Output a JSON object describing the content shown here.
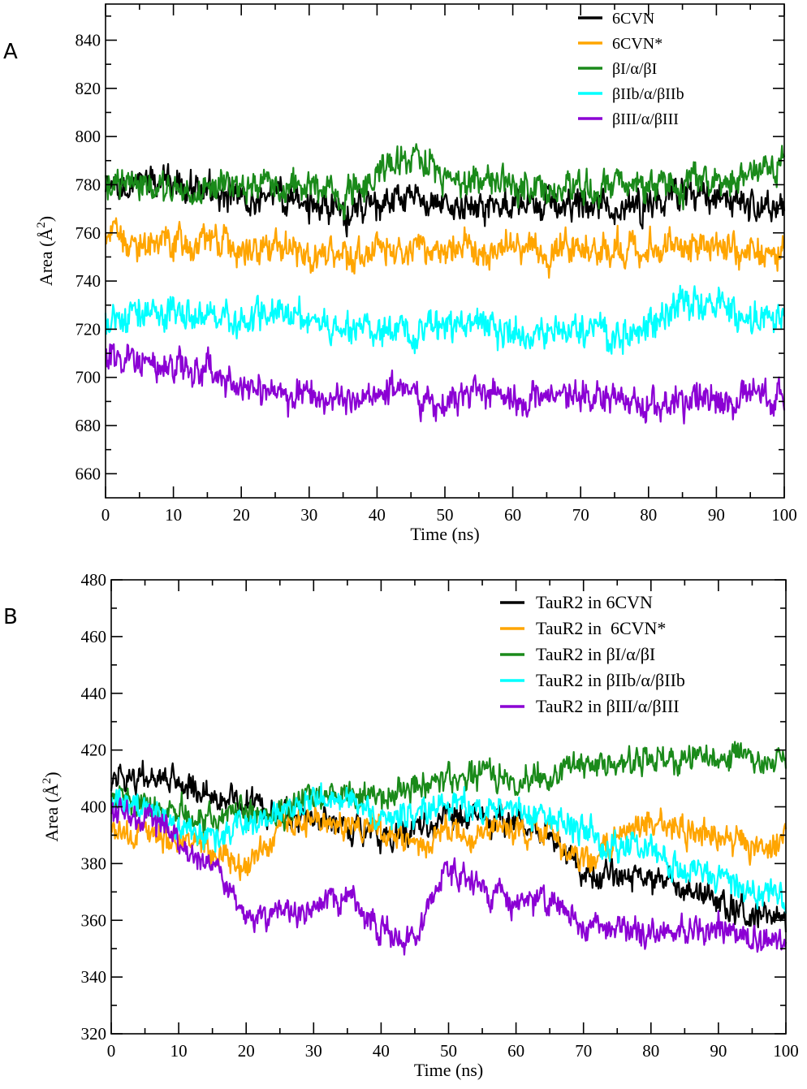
{
  "chart_data": [
    {
      "panel": "A",
      "type": "line",
      "xlabel": "Time (ns)",
      "ylabel_main": "Area (",
      "ylabel_unit": "Å",
      "ylabel_sup": "2",
      "ylabel_close": ")",
      "xlim": [
        0,
        100
      ],
      "ylim": [
        650,
        855
      ],
      "xticks": [
        0,
        10,
        20,
        30,
        40,
        50,
        60,
        70,
        80,
        90,
        100
      ],
      "yticks": [
        660,
        680,
        700,
        720,
        740,
        760,
        780,
        800,
        820,
        840
      ],
      "legend": [
        "6CVN",
        "6CVN*",
        "βI/α/βI",
        "βIIb/α/βIIb",
        "βIII/α/βIII"
      ],
      "series": [
        {
          "name": "6CVN",
          "color": "#000000",
          "x": [
            0,
            5,
            10,
            15,
            20,
            25,
            30,
            35,
            40,
            45,
            50,
            55,
            60,
            65,
            70,
            75,
            80,
            85,
            90,
            95,
            100
          ],
          "values": [
            776,
            780,
            782,
            778,
            774,
            776,
            772,
            768,
            772,
            774,
            770,
            772,
            770,
            772,
            773,
            770,
            772,
            776,
            778,
            772,
            770
          ]
        },
        {
          "name": "6CVN*",
          "color": "#ffa500",
          "x": [
            0,
            5,
            10,
            15,
            20,
            25,
            30,
            35,
            40,
            45,
            50,
            55,
            60,
            65,
            70,
            75,
            80,
            85,
            90,
            95,
            100
          ],
          "values": [
            760,
            756,
            755,
            756,
            754,
            754,
            752,
            750,
            752,
            754,
            753,
            755,
            753,
            752,
            754,
            755,
            752,
            756,
            755,
            754,
            752
          ]
        },
        {
          "name": "βI/α/βI",
          "color": "#1a8a1a",
          "x": [
            0,
            5,
            10,
            15,
            20,
            25,
            30,
            35,
            40,
            45,
            50,
            55,
            60,
            65,
            70,
            75,
            80,
            85,
            90,
            95,
            100
          ],
          "values": [
            778,
            780,
            776,
            777,
            780,
            780,
            778,
            776,
            786,
            792,
            784,
            780,
            782,
            778,
            778,
            778,
            782,
            780,
            782,
            784,
            788
          ]
        },
        {
          "name": "βIIb/α/βIIb",
          "color": "#00ffff",
          "x": [
            0,
            5,
            10,
            15,
            20,
            25,
            30,
            35,
            40,
            45,
            50,
            55,
            60,
            65,
            70,
            75,
            80,
            85,
            90,
            95,
            100
          ],
          "values": [
            722,
            726,
            728,
            725,
            724,
            726,
            726,
            720,
            720,
            718,
            722,
            722,
            718,
            718,
            720,
            718,
            722,
            732,
            730,
            724,
            724
          ]
        },
        {
          "name": "βIII/α/βIII",
          "color": "#8b00d4",
          "x": [
            0,
            5,
            10,
            15,
            20,
            25,
            30,
            35,
            40,
            45,
            50,
            55,
            60,
            65,
            70,
            75,
            80,
            85,
            90,
            95,
            100
          ],
          "values": [
            708,
            708,
            704,
            702,
            696,
            694,
            693,
            692,
            694,
            693,
            690,
            693,
            692,
            694,
            692,
            690,
            688,
            690,
            690,
            692,
            692
          ]
        }
      ]
    },
    {
      "panel": "B",
      "type": "line",
      "xlabel": "Time (ns)",
      "ylabel_main": "Area (",
      "ylabel_unit": "Å",
      "ylabel_sup": "2",
      "ylabel_close": ")",
      "xlim": [
        0,
        100
      ],
      "ylim": [
        320,
        480
      ],
      "xticks": [
        0,
        10,
        20,
        30,
        40,
        50,
        60,
        70,
        80,
        90,
        100
      ],
      "yticks": [
        320,
        340,
        360,
        380,
        400,
        420,
        440,
        460,
        480
      ],
      "legend": [
        "TauR2 in 6CVN",
        "TauR2 in  6CVN*",
        "TauR2 in βI/α/βI",
        "TauR2 in βIIb/α/βIIb",
        "TauR2 in βIII/α/βIII"
      ],
      "series": [
        {
          "name": "TauR2 in 6CVN",
          "color": "#000000",
          "x": [
            0,
            5,
            10,
            15,
            20,
            25,
            30,
            35,
            40,
            45,
            50,
            55,
            60,
            65,
            70,
            75,
            80,
            85,
            90,
            95,
            100
          ],
          "values": [
            410,
            410,
            408,
            404,
            402,
            398,
            396,
            394,
            390,
            392,
            398,
            396,
            394,
            388,
            378,
            376,
            374,
            372,
            366,
            362,
            360
          ]
        },
        {
          "name": "TauR2 in  6CVN*",
          "color": "#ffa500",
          "x": [
            0,
            5,
            10,
            15,
            20,
            25,
            30,
            35,
            40,
            45,
            50,
            55,
            60,
            65,
            70,
            75,
            80,
            85,
            90,
            95,
            100
          ],
          "values": [
            392,
            390,
            388,
            384,
            378,
            392,
            396,
            394,
            392,
            388,
            390,
            392,
            392,
            390,
            380,
            390,
            394,
            392,
            390,
            386,
            388
          ]
        },
        {
          "name": "TauR2 in βI/α/βI",
          "color": "#1a8a1a",
          "x": [
            0,
            5,
            10,
            15,
            20,
            25,
            30,
            35,
            40,
            45,
            50,
            55,
            60,
            65,
            70,
            75,
            80,
            85,
            90,
            95,
            100
          ],
          "values": [
            405,
            402,
            398,
            396,
            398,
            398,
            404,
            404,
            402,
            408,
            410,
            412,
            408,
            412,
            416,
            414,
            418,
            416,
            416,
            418,
            414
          ]
        },
        {
          "name": "TauR2 in βIIb/α/βIIb",
          "color": "#00ffff",
          "x": [
            0,
            5,
            10,
            15,
            20,
            25,
            30,
            35,
            40,
            45,
            50,
            55,
            60,
            65,
            70,
            75,
            80,
            85,
            90,
            95,
            100
          ],
          "values": [
            404,
            400,
            392,
            388,
            394,
            398,
            404,
            402,
            396,
            398,
            402,
            398,
            398,
            396,
            392,
            386,
            384,
            378,
            376,
            370,
            368
          ]
        },
        {
          "name": "TauR2 in βIII/α/βIII",
          "color": "#8b00d4",
          "x": [
            0,
            5,
            10,
            15,
            20,
            25,
            30,
            35,
            40,
            45,
            50,
            55,
            60,
            65,
            70,
            75,
            80,
            85,
            90,
            95,
            100
          ],
          "values": [
            400,
            396,
            388,
            378,
            362,
            362,
            362,
            370,
            356,
            352,
            380,
            370,
            366,
            368,
            358,
            358,
            354,
            356,
            358,
            352,
            354
          ]
        }
      ]
    }
  ],
  "panels": {
    "A": "A",
    "B": "B"
  }
}
